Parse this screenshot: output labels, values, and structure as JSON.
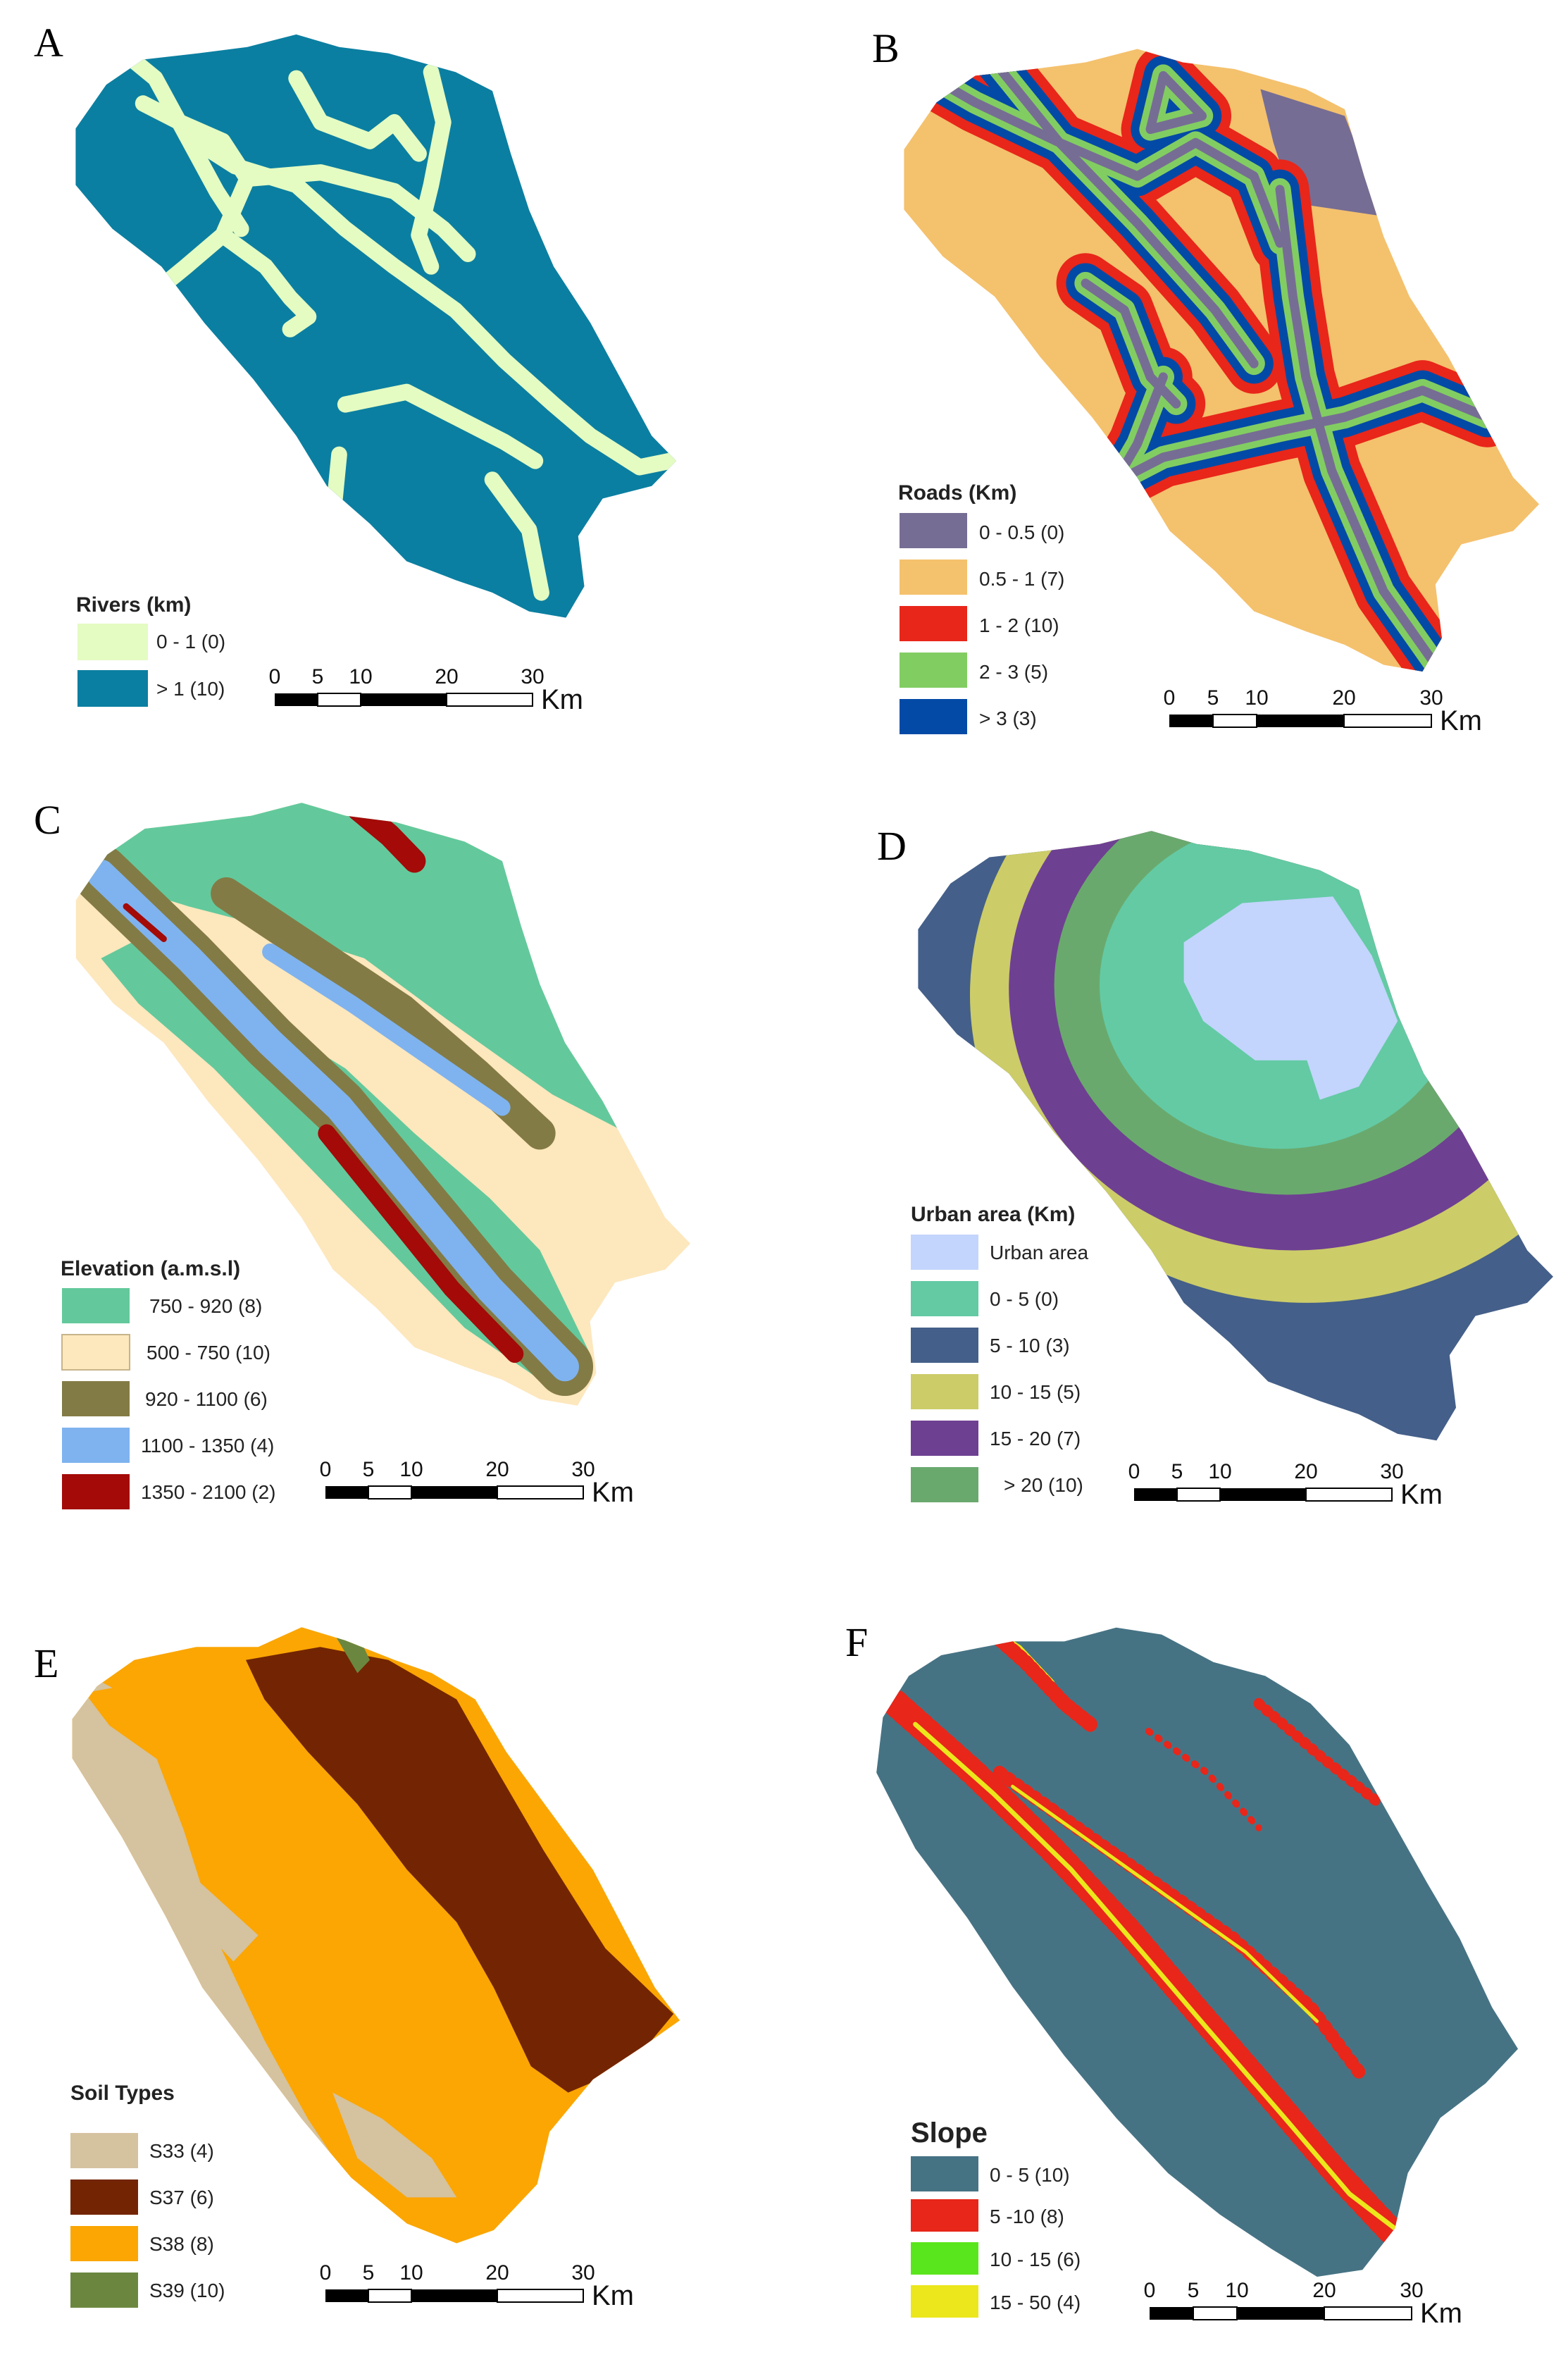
{
  "panels": {
    "A": {
      "letter": "A",
      "legend": {
        "title": "Rivers (km)",
        "items": [
          {
            "label": "0 - 1 (0)",
            "color": "#e4fbc2"
          },
          {
            "label": "> 1 (10)",
            "color": "#0b7fa1"
          }
        ]
      },
      "scale": {
        "ticks": [
          "0",
          "5",
          "10",
          "20",
          "30"
        ],
        "unit": "Km"
      }
    },
    "B": {
      "letter": "B",
      "legend": {
        "title": "Roads (Km)",
        "items": [
          {
            "label": "0 - 0.5 (0)",
            "color": "#766d94"
          },
          {
            "label": "0.5 - 1 (7)",
            "color": "#f4c16d"
          },
          {
            "label": "1 - 2 (10)",
            "color": "#e8261a"
          },
          {
            "label": "2 - 3 (5)",
            "color": "#82cd62"
          },
          {
            "label": "> 3  (3)",
            "color": "#034aa6"
          }
        ]
      },
      "scale": {
        "ticks": [
          "0",
          "5",
          "10",
          "20",
          "30"
        ],
        "unit": "Km"
      }
    },
    "C": {
      "letter": "C",
      "legend": {
        "title": "Elevation (a.m.s.l)",
        "items": [
          {
            "label": "750 - 920  (8)",
            "color": "#63c99c"
          },
          {
            "label": "500 - 750 (10)",
            "color": "#fde7bd"
          },
          {
            "label": "920 - 1100  (6)",
            "color": "#837b45"
          },
          {
            "label": "1100 - 1350  (4)",
            "color": "#7fb3ef"
          },
          {
            "label": "1350 - 2100  (2)",
            "color": "#a30a08"
          }
        ]
      },
      "scale": {
        "ticks": [
          "0",
          "5",
          "10",
          "20",
          "30"
        ],
        "unit": "Km"
      }
    },
    "D": {
      "letter": "D",
      "legend": {
        "title": "Urban area (Km)",
        "items": [
          {
            "label": "Urban area",
            "color": "#c3d5fc"
          },
          {
            "label": "0 - 5 (0)",
            "color": "#63caa4"
          },
          {
            "label": "5 - 10 (3)",
            "color": "#445f89"
          },
          {
            "label": "10 - 15 (5)",
            "color": "#cccc69"
          },
          {
            "label": "15 - 20 (7)",
            "color": "#6e4092"
          },
          {
            "label": "> 20 (10)",
            "color": "#6aa96d"
          }
        ]
      },
      "scale": {
        "ticks": [
          "0",
          "5",
          "10",
          "20",
          "30"
        ],
        "unit": "Km"
      }
    },
    "E": {
      "letter": "E",
      "legend": {
        "title": "Soil Types",
        "items": [
          {
            "label": "S33 (4)",
            "color": "#d5c29f"
          },
          {
            "label": "S37 (6)",
            "color": "#732503"
          },
          {
            "label": "S38 (8)",
            "color": "#fba603"
          },
          {
            "label": "S39 (10)",
            "color": "#6b873f"
          }
        ]
      },
      "scale": {
        "ticks": [
          "0",
          "5",
          "10",
          "20",
          "30"
        ],
        "unit": "Km"
      }
    },
    "F": {
      "letter": "F",
      "legend": {
        "title": "Slope",
        "items": [
          {
            "label": "0 - 5 (10)",
            "color": "#467384"
          },
          {
            "label": "5 -10  (8)",
            "color": "#e8261a"
          },
          {
            "label": "10 - 15 (6)",
            "color": "#5ae61c"
          },
          {
            "label": "15 - 50 (4)",
            "color": "#ebe71c"
          }
        ]
      },
      "scale": {
        "ticks": [
          "0",
          "5",
          "10",
          "20",
          "30"
        ],
        "unit": "Km"
      }
    }
  }
}
